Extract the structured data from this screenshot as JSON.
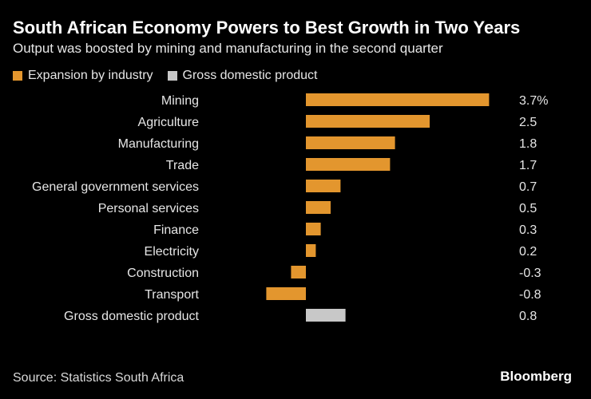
{
  "header": {
    "title": "South African Economy Powers to Best Growth in Two Years",
    "subtitle": "Output was boosted by mining and manufacturing in the second quarter"
  },
  "legend": {
    "items": [
      {
        "label": "Expansion by industry",
        "color": "#E3962E"
      },
      {
        "label": "Gross domestic product",
        "color": "#C8C8C8"
      }
    ]
  },
  "chart_data": {
    "type": "bar",
    "orientation": "horizontal",
    "title": "South African Economy Powers to Best Growth in Two Years",
    "subtitle": "Output was boosted by mining and manufacturing in the second quarter",
    "categories": [
      "Mining",
      "Agriculture",
      "Manufacturing",
      "Trade",
      "General government services",
      "Personal services",
      "Finance",
      "Electricity",
      "Construction",
      "Transport",
      "Gross domestic product"
    ],
    "values": [
      3.7,
      2.5,
      1.8,
      1.7,
      0.7,
      0.5,
      0.3,
      0.2,
      -0.3,
      -0.8,
      0.8
    ],
    "value_labels": [
      "3.7%",
      "2.5",
      "1.8",
      "1.7",
      "0.7",
      "0.5",
      "0.3",
      "0.2",
      "-0.3",
      "-0.8",
      "0.8"
    ],
    "series_type": [
      "Expansion by industry",
      "Expansion by industry",
      "Expansion by industry",
      "Expansion by industry",
      "Expansion by industry",
      "Expansion by industry",
      "Expansion by industry",
      "Expansion by industry",
      "Expansion by industry",
      "Expansion by industry",
      "Gross domestic product"
    ],
    "xlim": [
      -1.0,
      3.7
    ],
    "grid": false,
    "legend_position": "top-left"
  },
  "footer": {
    "source": "Source: Statistics South Africa",
    "brand": "Bloomberg"
  }
}
